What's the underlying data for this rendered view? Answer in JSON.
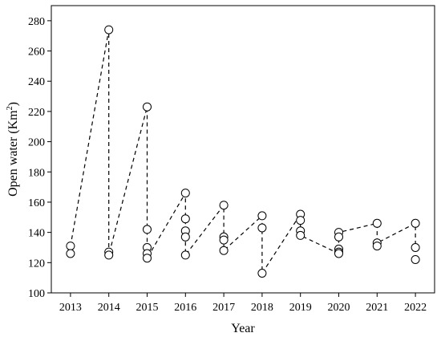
{
  "chart_data": {
    "type": "scatter",
    "xlabel": "Year",
    "ylabel_main": "Open water (Km",
    "ylabel_sup": "2",
    "ylabel_close": ")",
    "xlim": [
      2012.5,
      2022.5
    ],
    "ylim": [
      100,
      290
    ],
    "x_ticks": [
      "2013",
      "2014",
      "2015",
      "2016",
      "2017",
      "2018",
      "2019",
      "2020",
      "2021",
      "2022"
    ],
    "y_ticks": [
      "100",
      "120",
      "140",
      "160",
      "180",
      "200",
      "220",
      "240",
      "260",
      "280"
    ],
    "grid": false,
    "line_style": "dashed",
    "marker": "open-circle",
    "points": [
      {
        "x": 2013,
        "y": 131
      },
      {
        "x": 2013,
        "y": 126
      },
      {
        "x": 2014,
        "y": 274
      },
      {
        "x": 2014,
        "y": 127
      },
      {
        "x": 2014,
        "y": 125
      },
      {
        "x": 2015,
        "y": 223
      },
      {
        "x": 2015,
        "y": 142
      },
      {
        "x": 2015,
        "y": 130
      },
      {
        "x": 2015,
        "y": 126
      },
      {
        "x": 2015,
        "y": 123
      },
      {
        "x": 2016,
        "y": 166
      },
      {
        "x": 2016,
        "y": 149
      },
      {
        "x": 2016,
        "y": 141
      },
      {
        "x": 2016,
        "y": 137
      },
      {
        "x": 2016,
        "y": 125
      },
      {
        "x": 2017,
        "y": 158
      },
      {
        "x": 2017,
        "y": 137
      },
      {
        "x": 2017,
        "y": 135
      },
      {
        "x": 2017,
        "y": 128
      },
      {
        "x": 2018,
        "y": 151
      },
      {
        "x": 2018,
        "y": 143
      },
      {
        "x": 2018,
        "y": 113
      },
      {
        "x": 2019,
        "y": 152
      },
      {
        "x": 2019,
        "y": 148
      },
      {
        "x": 2019,
        "y": 141
      },
      {
        "x": 2019,
        "y": 138
      },
      {
        "x": 2020,
        "y": 140
      },
      {
        "x": 2020,
        "y": 137
      },
      {
        "x": 2020,
        "y": 129
      },
      {
        "x": 2020,
        "y": 127
      },
      {
        "x": 2020,
        "y": 126
      },
      {
        "x": 2021,
        "y": 146
      },
      {
        "x": 2021,
        "y": 133
      },
      {
        "x": 2021,
        "y": 131
      },
      {
        "x": 2022,
        "y": 146
      },
      {
        "x": 2022,
        "y": 130
      },
      {
        "x": 2022,
        "y": 122
      }
    ],
    "line_path": [
      {
        "x": 2013,
        "y": 126
      },
      {
        "x": 2013,
        "y": 131
      },
      {
        "x": 2014,
        "y": 274
      },
      {
        "x": 2014,
        "y": 125
      },
      {
        "x": 2015,
        "y": 223
      },
      {
        "x": 2015,
        "y": 123
      },
      {
        "x": 2016,
        "y": 166
      },
      {
        "x": 2016,
        "y": 125
      },
      {
        "x": 2017,
        "y": 158
      },
      {
        "x": 2017,
        "y": 128
      },
      {
        "x": 2018,
        "y": 151
      },
      {
        "x": 2018,
        "y": 113
      },
      {
        "x": 2019,
        "y": 152
      },
      {
        "x": 2019,
        "y": 138
      },
      {
        "x": 2020,
        "y": 126
      },
      {
        "x": 2020,
        "y": 140
      },
      {
        "x": 2021,
        "y": 146
      },
      {
        "x": 2021,
        "y": 133
      },
      {
        "x": 2022,
        "y": 146
      },
      {
        "x": 2022,
        "y": 122
      }
    ]
  }
}
